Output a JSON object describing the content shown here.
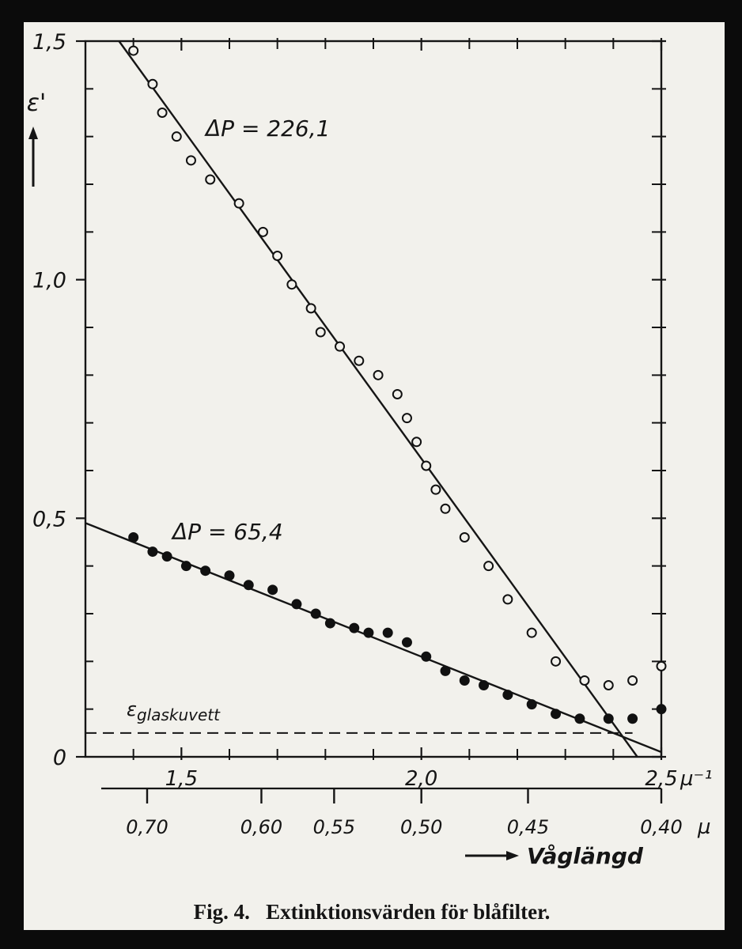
{
  "chart_data": {
    "type": "scatter",
    "caption": "Fig. 4.   Extinktionsvärden för blåfilter.",
    "y_label": "ε'",
    "x2_label": "Våglängd",
    "xlim": [
      1.3,
      2.5
    ],
    "ylim": [
      0,
      1.5
    ],
    "xticks": [
      {
        "value": 1.5,
        "label": "1,5"
      },
      {
        "value": 2.0,
        "label": "2,0"
      },
      {
        "value": 2.5,
        "label": "2,5"
      }
    ],
    "x_unit": "µ⁻¹",
    "x_minor_ticks": [
      1.4,
      1.6,
      1.7,
      1.8,
      1.9,
      2.1,
      2.2,
      2.3,
      2.4
    ],
    "yticks": [
      {
        "value": 0,
        "label": "0"
      },
      {
        "value": 0.5,
        "label": "0,5"
      },
      {
        "value": 1.0,
        "label": "1,0"
      },
      {
        "value": 1.5,
        "label": "1,5"
      }
    ],
    "y_minor_ticks": [
      0.1,
      0.2,
      0.3,
      0.4,
      0.6,
      0.7,
      0.8,
      0.9,
      1.1,
      1.2,
      1.3,
      1.4
    ],
    "x2_scale": "reciprocal",
    "x2ticks": [
      {
        "value": 0.7,
        "label": "0,70"
      },
      {
        "value": 0.6,
        "label": "0,60"
      },
      {
        "value": 0.55,
        "label": "0,55"
      },
      {
        "value": 0.5,
        "label": "0,50"
      },
      {
        "value": 0.45,
        "label": "0,45"
      },
      {
        "value": 0.4,
        "label": "0,40"
      }
    ],
    "x2_unit": "µ",
    "series": [
      {
        "marker": "open",
        "color": "#111111",
        "x": [
          1.4,
          1.44,
          1.46,
          1.49,
          1.52,
          1.56,
          1.62,
          1.67,
          1.7,
          1.73,
          1.77,
          1.79,
          1.83,
          1.87,
          1.91,
          1.95,
          1.97,
          1.99,
          2.01,
          2.03,
          2.05,
          2.09,
          2.14,
          2.18,
          2.23,
          2.28,
          2.34,
          2.39,
          2.44,
          2.5
        ],
        "y": [
          1.48,
          1.41,
          1.35,
          1.3,
          1.25,
          1.21,
          1.16,
          1.1,
          1.05,
          0.99,
          0.94,
          0.89,
          0.86,
          0.83,
          0.8,
          0.76,
          0.71,
          0.66,
          0.61,
          0.56,
          0.52,
          0.46,
          0.4,
          0.33,
          0.26,
          0.2,
          0.16,
          0.15,
          0.16,
          0.19
        ]
      },
      {
        "marker": "filled",
        "color": "#111111",
        "x": [
          1.4,
          1.44,
          1.47,
          1.51,
          1.55,
          1.6,
          1.64,
          1.69,
          1.74,
          1.78,
          1.81,
          1.86,
          1.89,
          1.93,
          1.97,
          2.01,
          2.05,
          2.09,
          2.13,
          2.18,
          2.23,
          2.28,
          2.33,
          2.39,
          2.44,
          2.5
        ],
        "y": [
          0.46,
          0.43,
          0.42,
          0.4,
          0.39,
          0.38,
          0.36,
          0.35,
          0.32,
          0.3,
          0.28,
          0.27,
          0.26,
          0.26,
          0.24,
          0.21,
          0.18,
          0.16,
          0.15,
          0.13,
          0.11,
          0.09,
          0.08,
          0.08,
          0.08,
          0.1
        ]
      }
    ],
    "fit_lines": [
      {
        "label": "ΔP = 226,1",
        "x": [
          1.37,
          2.45
        ],
        "y": [
          1.5,
          0
        ]
      },
      {
        "label": "ΔP = 65,4",
        "x": [
          1.3,
          2.5
        ],
        "y": [
          0.49,
          0.01
        ]
      }
    ],
    "reference_line": {
      "symbol": "ε",
      "subscript": "glaskuvett",
      "y": 0.05,
      "x": [
        1.3,
        2.44
      ],
      "style": "dashed"
    }
  }
}
